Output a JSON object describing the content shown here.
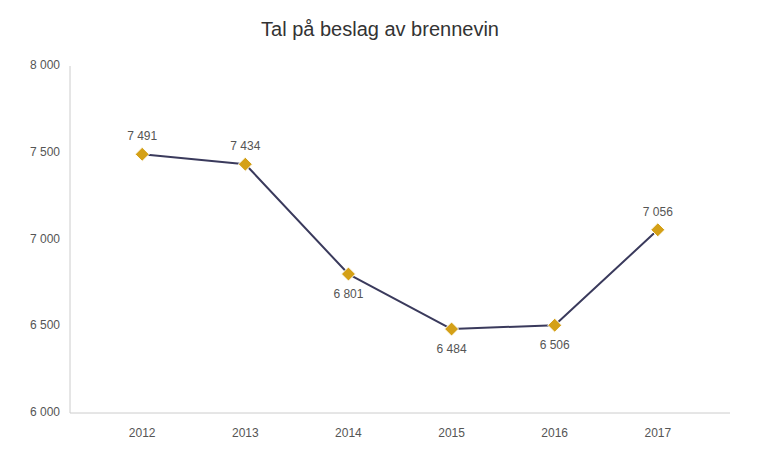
{
  "chart_data": {
    "type": "line",
    "title": "Tal på beslag av brennevin",
    "x": [
      2012,
      2013,
      2014,
      2015,
      2016,
      2017
    ],
    "values": [
      7491,
      7434,
      6801,
      6484,
      6506,
      7056
    ],
    "value_labels": [
      "7 491",
      "7 434",
      "6 801",
      "6 484",
      "6 506",
      "7 056"
    ],
    "data_labels": true,
    "color": "#3a3a5c",
    "colors": [
      "#d4a017",
      "#d4a017",
      "#d4a017",
      "#d4a017",
      "#d4a017",
      "#d4a017"
    ],
    "marker": "diamond",
    "xlim": [
      2011.3,
      2017.7
    ],
    "xticks": [
      2012,
      2013,
      2014,
      2015,
      2016,
      2017
    ],
    "ylim": [
      6000,
      8000
    ],
    "yticks": [
      {
        "value": 6000,
        "label": "6 000"
      },
      {
        "value": 6500,
        "label": "6 500"
      },
      {
        "value": 7000,
        "label": "7 000"
      },
      {
        "value": 7500,
        "label": "7 500"
      },
      {
        "value": 8000,
        "label": "8 000"
      }
    ],
    "grid": false
  }
}
